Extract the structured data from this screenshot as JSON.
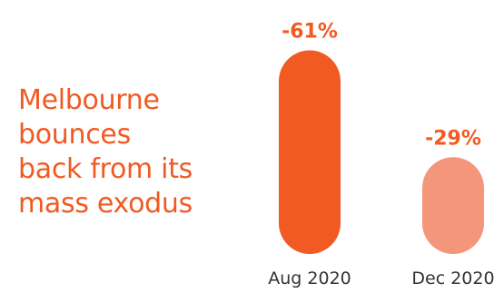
{
  "headline_lines": [
    "Melbourne",
    "bounces",
    "back from its",
    "mass exodus"
  ],
  "chart_data": {
    "type": "bar",
    "categories": [
      "Aug 2020",
      "Dec 2020"
    ],
    "values": [
      -61,
      -29
    ],
    "value_labels": [
      "-61%",
      "-29%"
    ],
    "colors": [
      "#f15a22",
      "#f4967a"
    ],
    "title": "",
    "xlabel": "",
    "ylabel": ""
  }
}
